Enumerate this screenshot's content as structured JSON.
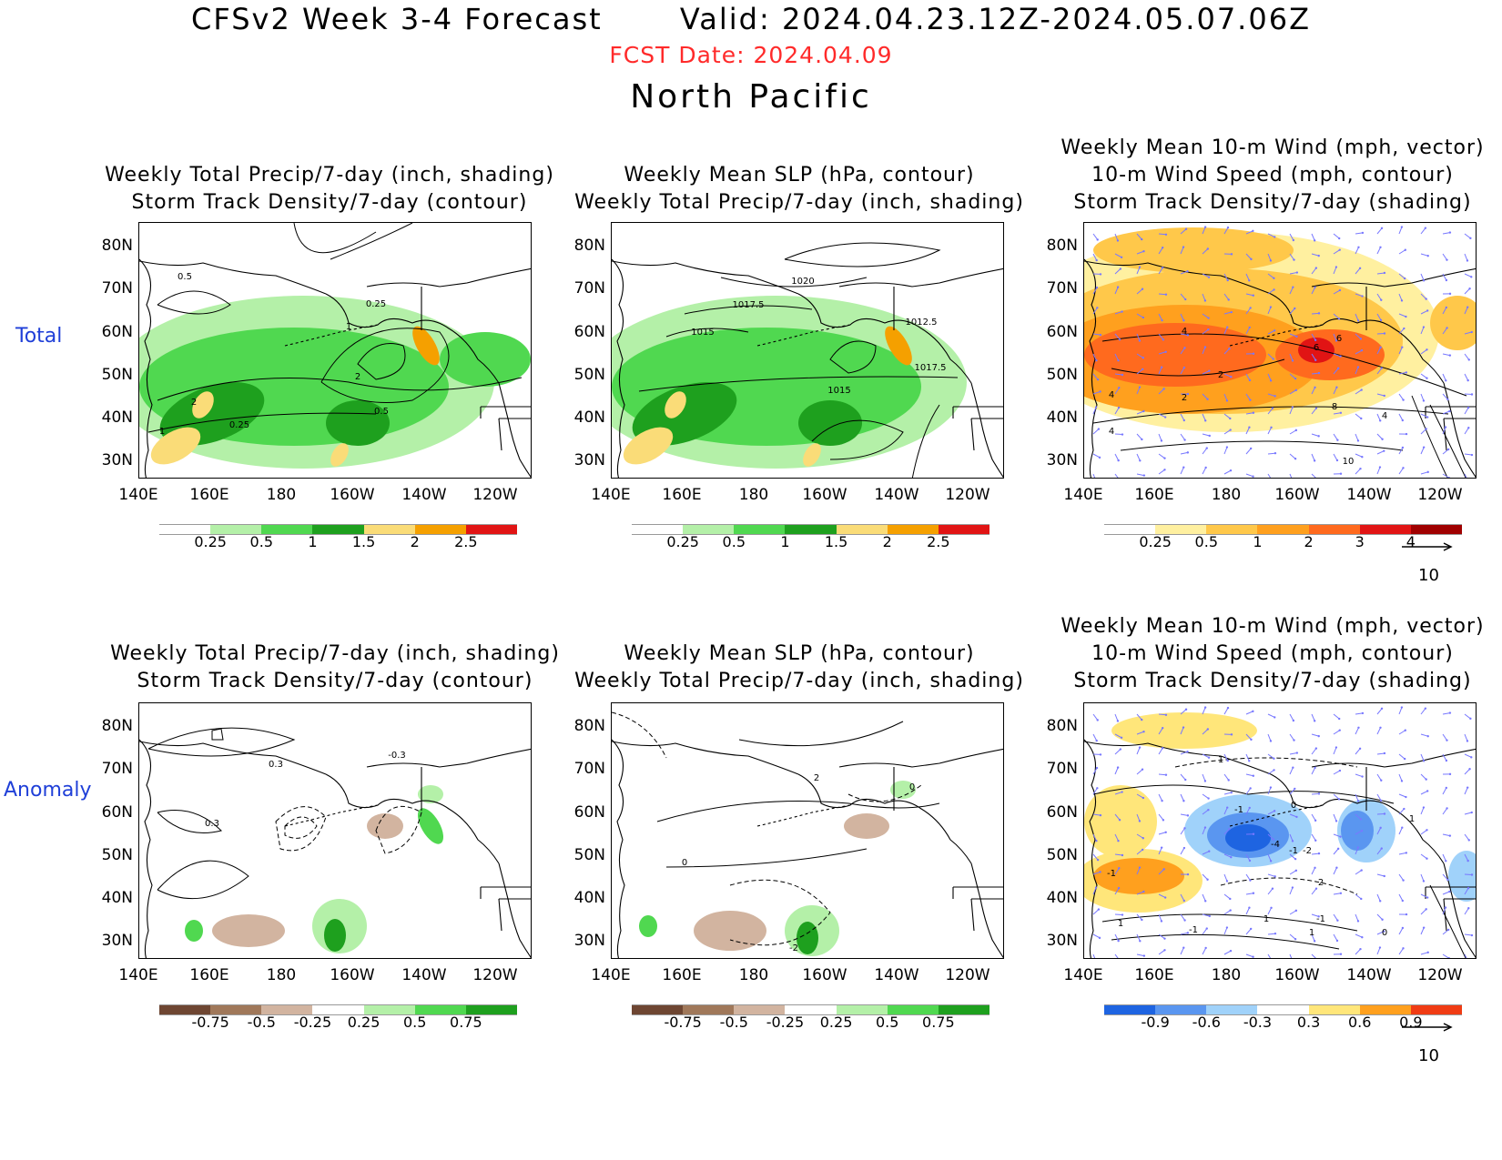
{
  "header": {
    "main": "CFSv2 Week 3-4 Forecast       Valid: 2024.04.23.12Z-2024.05.07.06Z",
    "fcst_date": "FCST Date: 2024.04.09",
    "region": "North Pacific"
  },
  "rows": [
    "Total",
    "Anomaly"
  ],
  "panel_titles": {
    "precip_storm": "Weekly Total Precip/7-day (inch, shading)\nStorm Track Density/7-day (contour)",
    "slp_precip": "Weekly Mean SLP (hPa, contour)\nWeekly Total Precip/7-day (inch, shading)",
    "wind_storm": "Weekly Mean 10-m Wind (mph, vector)\n10-m Wind Speed (mph, contour)\nStorm Track Density/7-day (shading)"
  },
  "lat_labels": [
    "80N",
    "70N",
    "60N",
    "50N",
    "40N",
    "30N"
  ],
  "lon_labels": [
    "140E",
    "160E",
    "180",
    "160W",
    "140W",
    "120W"
  ],
  "colorbars": {
    "precip_total": [
      "0.25",
      "0.5",
      "1",
      "1.5",
      "2",
      "2.5"
    ],
    "storm_total": [
      "0.25",
      "0.5",
      "1",
      "2",
      "3",
      "4"
    ],
    "precip_anom": [
      "-0.75",
      "-0.5",
      "-0.25",
      "0.25",
      "0.5",
      "0.75"
    ],
    "storm_anom": [
      "-0.9",
      "-0.6",
      "-0.3",
      "0.3",
      "0.6",
      "0.9"
    ]
  },
  "colors": {
    "precip_total": [
      "#ffffff",
      "#b4f0a8",
      "#50d850",
      "#1ea01e",
      "#fadc78",
      "#f5a000",
      "#e11414"
    ],
    "storm_total": [
      "#ffffff",
      "#fff0a0",
      "#ffc84a",
      "#ffa01e",
      "#ff6a1e",
      "#e11414",
      "#a00000"
    ],
    "precip_anom": [
      "#6e4632",
      "#a0785a",
      "#d2b4a0",
      "#ffffff",
      "#b4f0a8",
      "#50d850",
      "#1ea01e"
    ],
    "storm_anom": [
      "#1e64e1",
      "#5a96f0",
      "#a0d2fa",
      "#ffffff",
      "#ffe67a",
      "#ffa01e",
      "#f03c14"
    ]
  },
  "contour_labels": {
    "p1": [
      "0.5",
      "0.25",
      "1",
      "2",
      "0.5",
      "2",
      "0.25",
      "1"
    ],
    "p2": [
      "1020",
      "1017.5",
      "1015",
      "1012.5",
      "1017.5",
      "1015"
    ],
    "p3": [
      "4",
      "4",
      "6",
      "2",
      "8",
      "4",
      "4",
      "2",
      "6",
      "10"
    ],
    "p4": [
      "0.3",
      "0.3",
      "-0.3"
    ],
    "p5": [
      "2",
      "0",
      "0",
      "-2"
    ],
    "p6": [
      "-1",
      "1",
      "-1",
      "0",
      "-2",
      "-4",
      "-1",
      "2",
      "-1",
      "1",
      "-1",
      "1",
      "1",
      "0",
      "1"
    ]
  },
  "vector_ref": "10"
}
